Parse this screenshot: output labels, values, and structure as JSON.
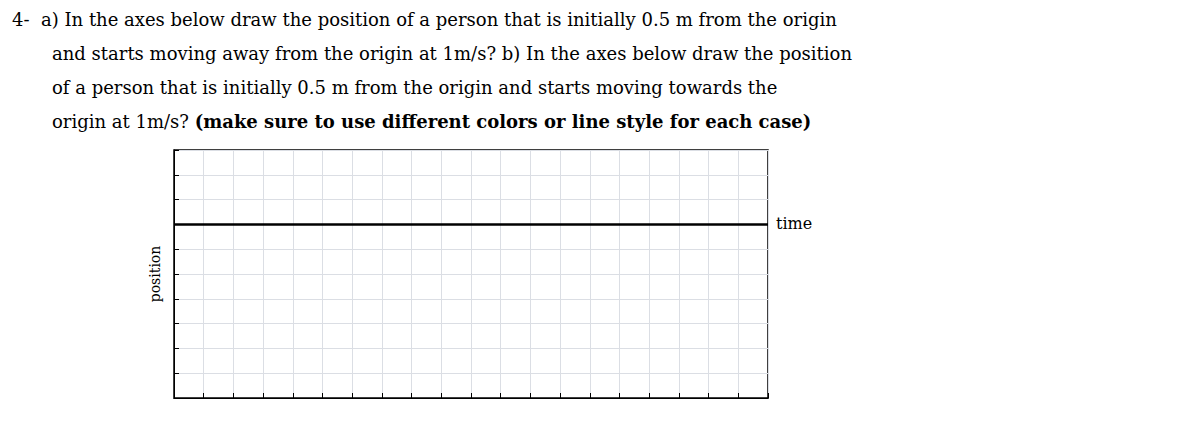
{
  "chart_data": {
    "type": "line",
    "annotations": [
      "4-  a) In the axes below draw the position of a person that is initially 0.5 m from the origin",
      "and starts moving away from the origin at 1m/s? b) In the axes below draw the position",
      "of a person that is initially 0.5 m from the origin and starts moving towards the",
      [
        "origin at 1m/s? ",
        "(make sure to use different colors or line style for each case)"
      ]
    ],
    "xlabel": "time",
    "ylabel": "position",
    "xlim": [
      0,
      20
    ],
    "ylim": [
      -5,
      5
    ],
    "xticks": [
      0,
      1,
      2,
      3,
      4,
      5,
      6,
      7,
      8,
      9,
      10,
      11,
      12,
      13,
      14,
      15,
      16,
      17,
      18,
      19,
      20
    ],
    "yticks": [
      -5,
      -4,
      -3,
      -2,
      -1,
      0,
      1,
      2,
      3,
      4,
      5
    ],
    "hline": 2.0,
    "color": "#000000",
    "grid": true,
    "tick_labels": false
  }
}
